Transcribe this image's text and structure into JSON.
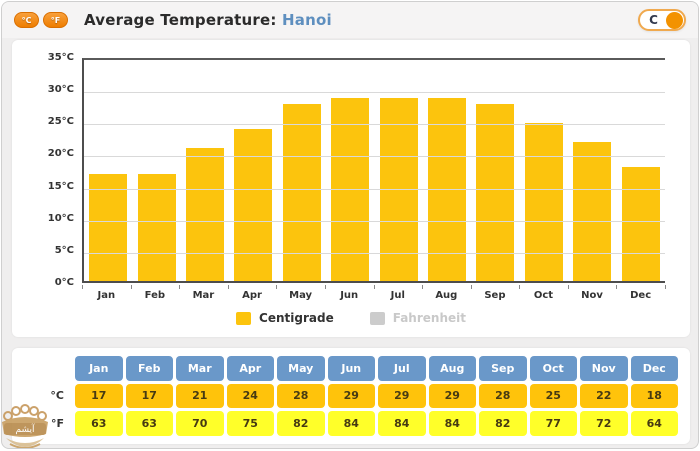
{
  "header": {
    "icon_c": "°C",
    "icon_f": "°F",
    "title": "Average Temperature:",
    "city": "Hanoi",
    "toggle_label": "C"
  },
  "chart_data": {
    "type": "bar",
    "title": "Average Temperature: Hanoi",
    "categories": [
      "Jan",
      "Feb",
      "Mar",
      "Apr",
      "May",
      "Jun",
      "Jul",
      "Aug",
      "Sep",
      "Oct",
      "Nov",
      "Dec"
    ],
    "series": [
      {
        "name": "Centigrade",
        "values": [
          17,
          17,
          21,
          24,
          28,
          29,
          29,
          29,
          28,
          25,
          22,
          18
        ],
        "color": "#fcc40d",
        "active": true
      },
      {
        "name": "Fahrenheit",
        "values": [
          63,
          63,
          70,
          75,
          82,
          84,
          84,
          84,
          82,
          77,
          72,
          64
        ],
        "color": "#cccccc",
        "active": false
      }
    ],
    "yticks": [
      0,
      5,
      10,
      15,
      20,
      25,
      30,
      35
    ],
    "ytick_suffix": "°C",
    "ylim": [
      0,
      35
    ],
    "grid": true,
    "legend_position": "bottom"
  },
  "legend": {
    "centigrade": "Centigrade",
    "fahrenheit": "Fahrenheit"
  },
  "table": {
    "months": [
      "Jan",
      "Feb",
      "Mar",
      "Apr",
      "May",
      "Jun",
      "Jul",
      "Aug",
      "Sep",
      "Oct",
      "Nov",
      "Dec"
    ],
    "rows": [
      {
        "label": "°C",
        "values": [
          17,
          17,
          21,
          24,
          28,
          29,
          29,
          29,
          28,
          25,
          22,
          18
        ]
      },
      {
        "label": "°F",
        "values": [
          63,
          63,
          70,
          75,
          82,
          84,
          84,
          84,
          82,
          77,
          72,
          64
        ]
      }
    ]
  },
  "watermark": {
    "text": "آیشم"
  },
  "colors": {
    "bar": "#fcc40d",
    "table_header": "#6a98c9",
    "celsius_row": "#ffc30b",
    "fahrenheit_row": "#ffff29",
    "city_text": "#5e8fbf",
    "toggle_knob": "#f39200",
    "inactive_legend": "#cccccc"
  }
}
